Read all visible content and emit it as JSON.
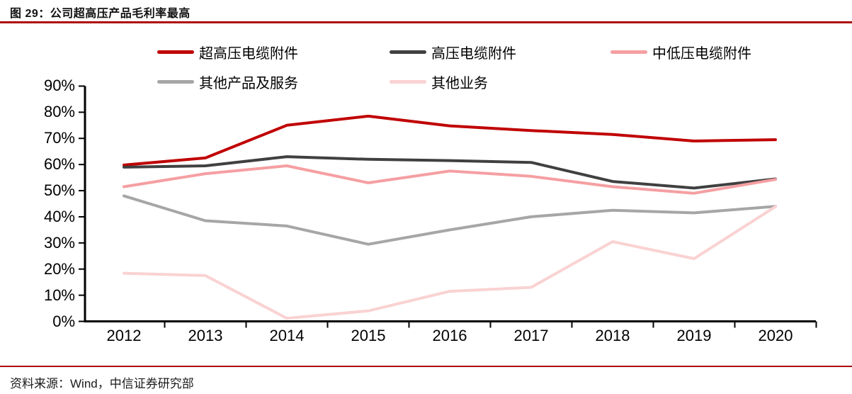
{
  "header": {
    "title": "图 29：公司超高压产品毛利率最高"
  },
  "footer": {
    "source": "资料来源：Wind，中信证券研究部"
  },
  "colors": {
    "accent_rule": "#ad0a0a",
    "axis": "#000000",
    "series_ultra_high": "#c00000",
    "series_high": "#404040",
    "series_mid_low": "#f59fa2",
    "series_other_products": "#a6a6a6",
    "series_other_business": "#fad2d2"
  },
  "chart_data": {
    "type": "line",
    "title": "公司超高压产品毛利率最高",
    "xlabel": "",
    "ylabel": "",
    "ylim": [
      0,
      90
    ],
    "ytick_step": 10,
    "ytick_suffix": "%",
    "grid": false,
    "legend_position": "top",
    "categories": [
      "2012",
      "2013",
      "2014",
      "2015",
      "2016",
      "2017",
      "2018",
      "2019",
      "2020"
    ],
    "series": [
      {
        "name": "超高压电缆附件",
        "color": "#c00000",
        "values": [
          59.8,
          62.5,
          75.0,
          78.5,
          74.8,
          73.0,
          71.5,
          69.0,
          69.5
        ]
      },
      {
        "name": "高压电缆附件",
        "color": "#404040",
        "values": [
          59.0,
          59.5,
          63.0,
          62.0,
          61.5,
          60.8,
          53.5,
          51.0,
          54.5
        ]
      },
      {
        "name": "中低压电缆附件",
        "color": "#f59fa2",
        "values": [
          51.5,
          56.5,
          59.5,
          53.0,
          57.5,
          55.5,
          51.5,
          49.0,
          54.3
        ]
      },
      {
        "name": "其他产品及服务",
        "color": "#a6a6a6",
        "values": [
          48.0,
          38.5,
          36.5,
          29.5,
          35.0,
          40.0,
          42.5,
          41.5,
          44.0
        ]
      },
      {
        "name": "其他业务",
        "color": "#fad2d2",
        "values": [
          18.4,
          17.5,
          1.2,
          4.0,
          11.5,
          13.0,
          30.5,
          24.0,
          43.9
        ]
      }
    ]
  }
}
